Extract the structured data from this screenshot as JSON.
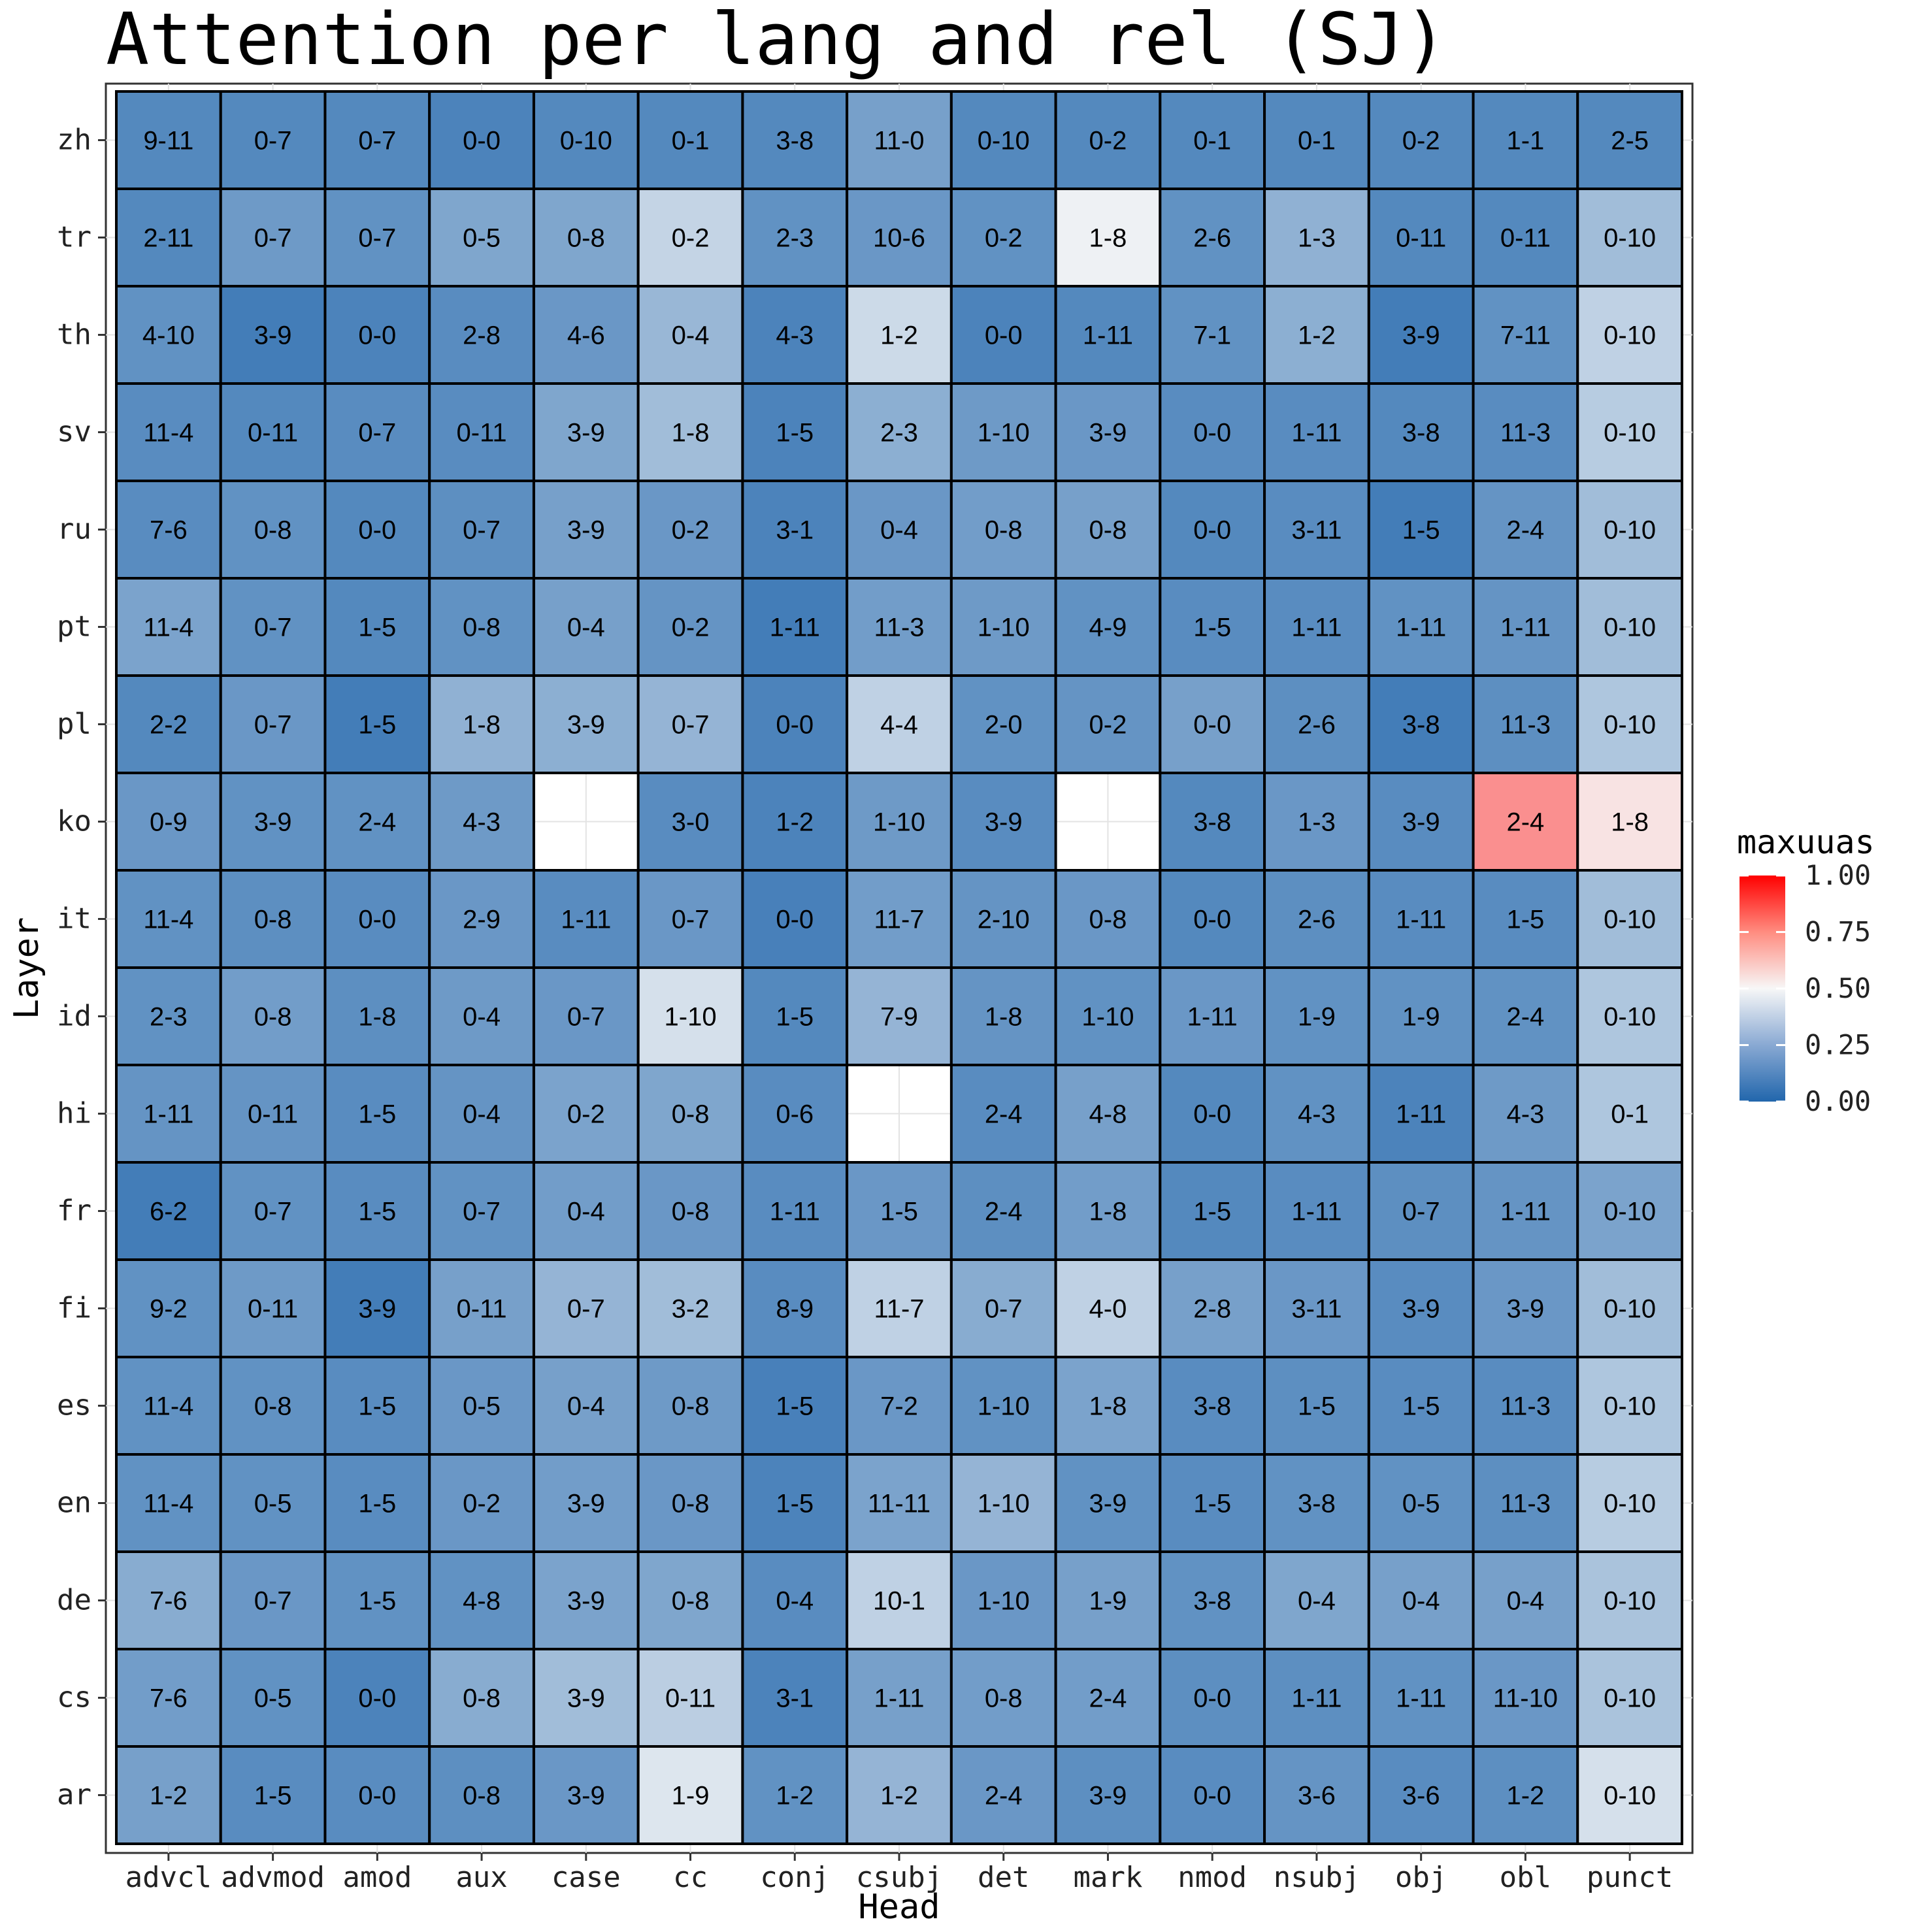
{
  "chart_data": {
    "type": "heatmap",
    "title": "Attention per lang and rel (SJ)",
    "xlabel": "Head",
    "ylabel": "Layer",
    "x_categories": [
      "advcl",
      "advmod",
      "amod",
      "aux",
      "case",
      "cc",
      "conj",
      "csubj",
      "det",
      "mark",
      "nmod",
      "nsubj",
      "obj",
      "obl",
      "punct"
    ],
    "y_categories": [
      "zh",
      "tr",
      "th",
      "sv",
      "ru",
      "pt",
      "pl",
      "ko",
      "it",
      "id",
      "hi",
      "fr",
      "fi",
      "es",
      "en",
      "de",
      "cs",
      "ar"
    ],
    "legend": {
      "title": "maxuuas",
      "position": "right",
      "range": [
        0,
        1
      ],
      "ticks": [
        "0.00",
        "0.25",
        "0.50",
        "0.75",
        "1.00"
      ],
      "colors": {
        "low": "#2166ac",
        "mid": "#f7f7f7",
        "high": "#ff0000"
      }
    },
    "grid": true,
    "rows": [
      {
        "lang": "zh",
        "labels": [
          "9-11",
          "0-7",
          "0-7",
          "0-0",
          "0-10",
          "0-1",
          "3-8",
          "11-0",
          "0-10",
          "0-2",
          "0-1",
          "0-1",
          "0-2",
          "1-1",
          "2-5"
        ],
        "values": [
          0.12,
          0.12,
          0.12,
          0.1,
          0.12,
          0.12,
          0.12,
          0.2,
          0.12,
          0.12,
          0.12,
          0.12,
          0.12,
          0.12,
          0.12
        ]
      },
      {
        "lang": "tr",
        "labels": [
          "2-11",
          "0-7",
          "0-7",
          "0-5",
          "0-8",
          "0-2",
          "2-3",
          "10-6",
          "0-2",
          "1-8",
          "2-6",
          "1-3",
          "0-11",
          "0-11",
          "0-10"
        ],
        "values": [
          0.12,
          0.18,
          0.15,
          0.22,
          0.22,
          0.38,
          0.15,
          0.17,
          0.15,
          0.48,
          0.15,
          0.26,
          0.12,
          0.12,
          0.3
        ]
      },
      {
        "lang": "th",
        "labels": [
          "4-10",
          "3-9",
          "0-0",
          "2-8",
          "4-6",
          "0-4",
          "4-3",
          "1-2",
          "0-0",
          "1-11",
          "7-1",
          "1-2",
          "3-9",
          "7-11",
          "0-10"
        ],
        "values": [
          0.15,
          0.08,
          0.1,
          0.13,
          0.17,
          0.28,
          0.1,
          0.4,
          0.1,
          0.12,
          0.15,
          0.25,
          0.08,
          0.15,
          0.37
        ]
      },
      {
        "lang": "sv",
        "labels": [
          "11-4",
          "0-11",
          "0-7",
          "0-11",
          "3-9",
          "1-8",
          "1-5",
          "2-3",
          "1-10",
          "3-9",
          "0-0",
          "1-11",
          "3-8",
          "11-3",
          "0-10"
        ],
        "values": [
          0.13,
          0.12,
          0.13,
          0.13,
          0.22,
          0.3,
          0.1,
          0.25,
          0.18,
          0.17,
          0.13,
          0.13,
          0.12,
          0.13,
          0.35
        ]
      },
      {
        "lang": "ru",
        "labels": [
          "7-6",
          "0-8",
          "0-0",
          "0-7",
          "3-9",
          "0-2",
          "3-1",
          "0-4",
          "0-8",
          "0-8",
          "0-0",
          "3-11",
          "1-5",
          "2-4",
          "0-10"
        ],
        "values": [
          0.13,
          0.15,
          0.12,
          0.14,
          0.2,
          0.17,
          0.1,
          0.17,
          0.19,
          0.2,
          0.12,
          0.13,
          0.08,
          0.16,
          0.3
        ]
      },
      {
        "lang": "pt",
        "labels": [
          "11-4",
          "0-7",
          "1-5",
          "0-8",
          "0-4",
          "0-2",
          "1-11",
          "11-3",
          "1-10",
          "4-9",
          "1-5",
          "1-11",
          "1-11",
          "1-11",
          "0-10"
        ],
        "values": [
          0.21,
          0.15,
          0.12,
          0.15,
          0.2,
          0.16,
          0.08,
          0.19,
          0.18,
          0.15,
          0.13,
          0.13,
          0.15,
          0.16,
          0.3
        ]
      },
      {
        "lang": "pl",
        "labels": [
          "2-2",
          "0-7",
          "1-5",
          "1-8",
          "3-9",
          "0-7",
          "0-0",
          "4-4",
          "2-0",
          "0-2",
          "0-0",
          "2-6",
          "3-8",
          "11-3",
          "0-10"
        ],
        "values": [
          0.12,
          0.17,
          0.08,
          0.26,
          0.25,
          0.27,
          0.1,
          0.37,
          0.15,
          0.16,
          0.2,
          0.14,
          0.08,
          0.14,
          0.33
        ]
      },
      {
        "lang": "ko",
        "labels": [
          "0-9",
          "3-9",
          "2-4",
          "4-3",
          null,
          "3-0",
          "1-2",
          "1-10",
          "3-9",
          null,
          "3-8",
          "1-3",
          "3-9",
          "2-4",
          "1-8"
        ],
        "values": [
          0.17,
          0.15,
          0.15,
          0.18,
          null,
          0.13,
          0.1,
          0.18,
          0.13,
          null,
          0.12,
          0.17,
          0.13,
          0.71,
          0.54
        ]
      },
      {
        "lang": "it",
        "labels": [
          "11-4",
          "0-8",
          "0-0",
          "2-9",
          "1-11",
          "0-7",
          "0-0",
          "11-7",
          "2-10",
          "0-8",
          "0-0",
          "2-6",
          "1-11",
          "1-5",
          "0-10"
        ],
        "values": [
          0.15,
          0.14,
          0.13,
          0.17,
          0.13,
          0.17,
          0.09,
          0.19,
          0.16,
          0.17,
          0.12,
          0.14,
          0.13,
          0.13,
          0.3
        ]
      },
      {
        "lang": "id",
        "labels": [
          "2-3",
          "0-8",
          "1-8",
          "0-4",
          "0-7",
          "1-10",
          "1-5",
          "7-9",
          "1-8",
          "1-10",
          "1-11",
          "1-9",
          "1-9",
          "2-4",
          "0-10"
        ],
        "values": [
          0.15,
          0.19,
          0.14,
          0.18,
          0.17,
          0.42,
          0.12,
          0.27,
          0.16,
          0.15,
          0.17,
          0.15,
          0.15,
          0.15,
          0.33
        ]
      },
      {
        "lang": "hi",
        "labels": [
          "1-11",
          "0-11",
          "1-5",
          "0-4",
          "0-2",
          "0-8",
          "0-6",
          null,
          "2-4",
          "4-8",
          "0-0",
          "4-3",
          "1-11",
          "4-3",
          "0-1"
        ],
        "values": [
          0.16,
          0.16,
          0.13,
          0.16,
          0.21,
          0.22,
          0.13,
          null,
          0.13,
          0.2,
          0.12,
          0.15,
          0.1,
          0.18,
          0.33
        ]
      },
      {
        "lang": "fr",
        "labels": [
          "6-2",
          "0-7",
          "1-5",
          "0-7",
          "0-4",
          "0-8",
          "1-11",
          "1-5",
          "2-4",
          "1-8",
          "1-5",
          "1-11",
          "0-7",
          "1-11",
          "0-10"
        ],
        "values": [
          0.08,
          0.15,
          0.13,
          0.15,
          0.19,
          0.17,
          0.13,
          0.17,
          0.14,
          0.19,
          0.12,
          0.13,
          0.14,
          0.16,
          0.21
        ]
      },
      {
        "lang": "fi",
        "labels": [
          "9-2",
          "0-11",
          "3-9",
          "0-11",
          "0-7",
          "3-2",
          "8-9",
          "11-7",
          "0-7",
          "4-0",
          "2-8",
          "3-11",
          "3-9",
          "3-9",
          "0-10"
        ],
        "values": [
          0.15,
          0.18,
          0.08,
          0.2,
          0.27,
          0.3,
          0.13,
          0.37,
          0.24,
          0.37,
          0.2,
          0.17,
          0.13,
          0.17,
          0.3
        ]
      },
      {
        "lang": "es",
        "labels": [
          "11-4",
          "0-8",
          "1-5",
          "0-5",
          "0-4",
          "0-8",
          "1-5",
          "7-2",
          "1-10",
          "1-8",
          "3-8",
          "1-5",
          "1-5",
          "11-3",
          "0-10"
        ],
        "values": [
          0.15,
          0.15,
          0.13,
          0.17,
          0.2,
          0.18,
          0.09,
          0.17,
          0.15,
          0.21,
          0.13,
          0.14,
          0.13,
          0.13,
          0.33
        ]
      },
      {
        "lang": "en",
        "labels": [
          "11-4",
          "0-5",
          "1-5",
          "0-2",
          "3-9",
          "0-8",
          "1-5",
          "11-11",
          "1-10",
          "3-9",
          "1-5",
          "3-8",
          "0-5",
          "11-3",
          "0-10"
        ],
        "values": [
          0.15,
          0.15,
          0.13,
          0.17,
          0.19,
          0.17,
          0.1,
          0.21,
          0.27,
          0.15,
          0.13,
          0.15,
          0.15,
          0.14,
          0.35
        ]
      },
      {
        "lang": "de",
        "labels": [
          "7-6",
          "0-7",
          "1-5",
          "4-8",
          "3-9",
          "0-8",
          "0-4",
          "10-1",
          "1-10",
          "1-9",
          "3-8",
          "0-4",
          "0-4",
          "0-4",
          "0-10"
        ],
        "values": [
          0.24,
          0.17,
          0.15,
          0.15,
          0.21,
          0.22,
          0.13,
          0.37,
          0.17,
          0.2,
          0.15,
          0.22,
          0.2,
          0.2,
          0.32
        ]
      },
      {
        "lang": "cs",
        "labels": [
          "7-6",
          "0-5",
          "0-0",
          "0-8",
          "3-9",
          "0-11",
          "3-1",
          "1-11",
          "0-8",
          "2-4",
          "0-0",
          "1-11",
          "1-11",
          "11-10",
          "0-10"
        ],
        "values": [
          0.19,
          0.15,
          0.1,
          0.24,
          0.3,
          0.36,
          0.1,
          0.2,
          0.19,
          0.19,
          0.14,
          0.14,
          0.15,
          0.17,
          0.32
        ]
      },
      {
        "lang": "ar",
        "labels": [
          "1-2",
          "1-5",
          "0-0",
          "0-8",
          "3-9",
          "1-9",
          "1-2",
          "1-2",
          "2-4",
          "3-9",
          "0-0",
          "3-6",
          "3-6",
          "1-2",
          "0-10"
        ],
        "values": [
          0.2,
          0.13,
          0.13,
          0.14,
          0.17,
          0.44,
          0.15,
          0.27,
          0.17,
          0.14,
          0.13,
          0.16,
          0.13,
          0.14,
          0.42
        ]
      }
    ]
  }
}
